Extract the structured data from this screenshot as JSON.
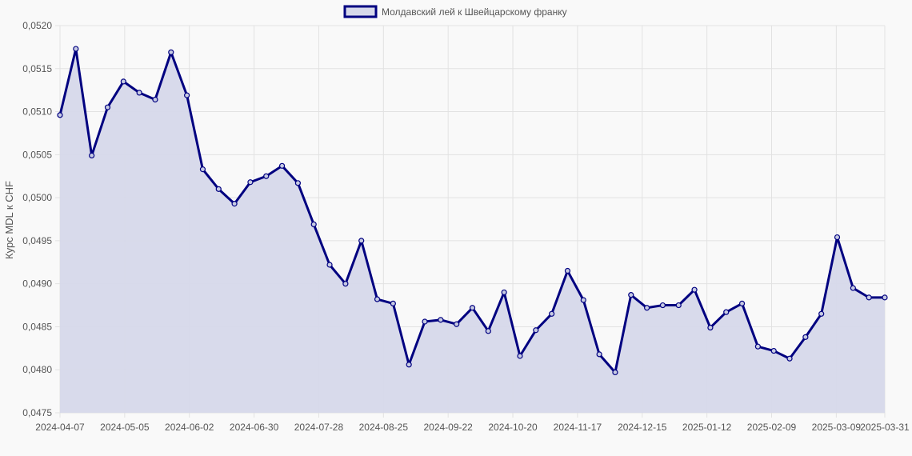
{
  "chart_data": {
    "type": "line",
    "fill": "area",
    "legend_position": "top-center",
    "grid": true,
    "ylabel": "Курс MDL к CHF",
    "ylim": [
      0.0475,
      0.052
    ],
    "yticks": [
      "0,0475",
      "0,0480",
      "0,0485",
      "0,0490",
      "0,0495",
      "0,0500",
      "0,0505",
      "0,0510",
      "0,0515",
      "0,0520"
    ],
    "xticks": [
      "2024-04-07",
      "2024-05-05",
      "2024-06-02",
      "2024-06-30",
      "2024-07-28",
      "2024-08-25",
      "2024-09-22",
      "2024-10-20",
      "2024-11-17",
      "2024-12-15",
      "2025-01-12",
      "2025-02-09",
      "2025-03-09",
      "2025-03-31"
    ],
    "colors": {
      "line": "#000080",
      "fill": "#d6d8ea",
      "grid": "#e2e2e2",
      "background": "#f9f9f9"
    },
    "series": [
      {
        "name": "Молдавский лей к Швейцарскому франку",
        "values": [
          0.05096,
          0.05173,
          0.05049,
          0.05105,
          0.05135,
          0.05122,
          0.05114,
          0.05169,
          0.05119,
          0.05033,
          0.0501,
          0.04993,
          0.05018,
          0.05025,
          0.05037,
          0.05017,
          0.04969,
          0.04922,
          0.049,
          0.0495,
          0.04882,
          0.04877,
          0.04806,
          0.04856,
          0.04858,
          0.04853,
          0.04872,
          0.04845,
          0.0489,
          0.04816,
          0.04846,
          0.04865,
          0.04915,
          0.04881,
          0.04818,
          0.04797,
          0.04887,
          0.04872,
          0.04875,
          0.04875,
          0.04893,
          0.04849,
          0.04867,
          0.04877,
          0.04827,
          0.04822,
          0.04813,
          0.04838,
          0.04865,
          0.04954,
          0.04895,
          0.04884,
          0.04884
        ]
      }
    ]
  }
}
